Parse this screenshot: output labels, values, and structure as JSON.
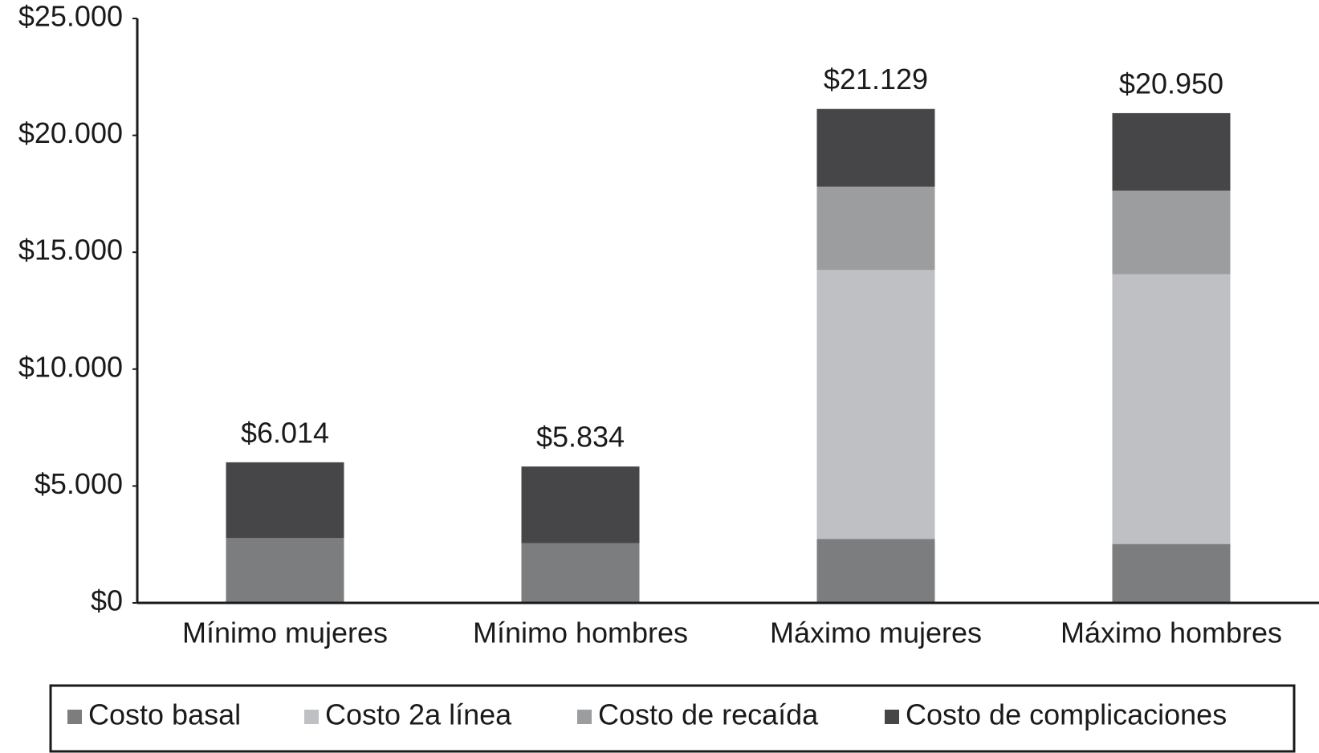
{
  "chart_data": {
    "type": "stacked_bar",
    "categories": [
      "Mínimo mujeres",
      "Mínimo hombres",
      "Máximo mujeres",
      "Máximo hombres"
    ],
    "series": [
      {
        "name": "Costo basal",
        "color": "#7c7d7f",
        "values": [
          2770,
          2550,
          2730,
          2520
        ]
      },
      {
        "name": "Costo 2a línea",
        "color": "#bfc0c3",
        "values": [
          0,
          0,
          11510,
          11540
        ]
      },
      {
        "name": "Costo de recaída",
        "color": "#9c9d9f",
        "values": [
          0,
          0,
          3560,
          3570
        ]
      },
      {
        "name": "Costo de complicaciones",
        "color": "#464648",
        "values": [
          3244,
          3284,
          3329,
          3320
        ]
      }
    ],
    "totals": {
      "values": [
        6014,
        5834,
        21129,
        20950
      ],
      "value_labels": [
        "$6.014",
        "$5.834",
        "$21.129",
        "$20.950"
      ]
    },
    "ylim": [
      0,
      25000
    ],
    "yticks": [
      {
        "value": 0,
        "label": "$0"
      },
      {
        "value": 5000,
        "label": "$5.000"
      },
      {
        "value": 10000,
        "label": "$10.000"
      },
      {
        "value": 15000,
        "label": "$15.000"
      },
      {
        "value": 20000,
        "label": "$20.000"
      },
      {
        "value": 25000,
        "label": "$25.000"
      }
    ],
    "grid": false,
    "legend": "bottom"
  }
}
